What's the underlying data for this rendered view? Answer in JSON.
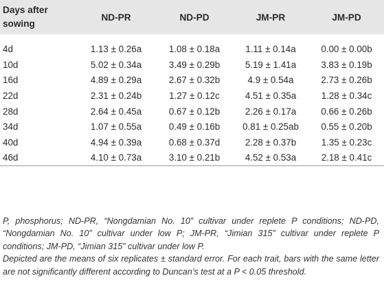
{
  "table": {
    "header": {
      "first_col_line1": "Days after",
      "first_col_line2": "sowing",
      "columns": [
        "ND-PR",
        "ND-PD",
        "JM-PR",
        "JM-PD"
      ]
    },
    "rows": [
      {
        "day": "4d",
        "values": [
          "1.13 ± 0.26a",
          "1.08 ± 0.18a",
          "1.11 ± 0.14a",
          "0.00 ± 0.00b"
        ]
      },
      {
        "day": "10d",
        "values": [
          "5.02 ± 0.34a",
          "3.49 ± 0.29b",
          "5.19 ± 1.41a",
          "3.83 ± 0.19b"
        ]
      },
      {
        "day": "16d",
        "values": [
          "4.89 ± 0.29a",
          "2.67 ± 0.32b",
          "4.9 ± 0.54a",
          "2.73 ± 0.26b"
        ]
      },
      {
        "day": "22d",
        "values": [
          "2.31 ± 0.24b",
          "1.27 ± 0.12c",
          "4.51 ± 0.35a",
          "1.28 ± 0.34c"
        ]
      },
      {
        "day": "28d",
        "values": [
          "2.64 ± 0.45a",
          "0.67 ± 0.12b",
          "2.26 ± 0.17a",
          "0.66 ± 0.26b"
        ]
      },
      {
        "day": "34d",
        "values": [
          "1.07 ± 0.55a",
          "0.49 ± 0.16b",
          "0.81 ± 0.25ab",
          "0.55 ± 0.20b"
        ]
      },
      {
        "day": "40d",
        "values": [
          "4.94 ± 0.39a",
          "0.68 ± 0.37d",
          "2.28 ± 0.37b",
          "1.35 ± 0.23c"
        ]
      },
      {
        "day": "46d",
        "values": [
          "4.10 ± 0.73a",
          "3.10 ± 0.21b",
          "4.52 ± 0.53a",
          "2.18 ± 0.41c"
        ]
      }
    ]
  },
  "notes": {
    "abbreviations": "P, phosphorus; ND-PR, “Nongdamian No. 10” cultivar under replete P conditions; ND-PD, “Nongdamian No. 10” cultivar under low P; JM-PR, “Jimian 315” cultivar under replete P conditions; JM-PD, “Jimian 315” cultivar under low P.",
    "statistics": "Depicted are the means of six replicates ± standard error. For each trait, bars with the same letter are not significantly different according to Duncan’s test at a P < 0.05 threshold."
  }
}
